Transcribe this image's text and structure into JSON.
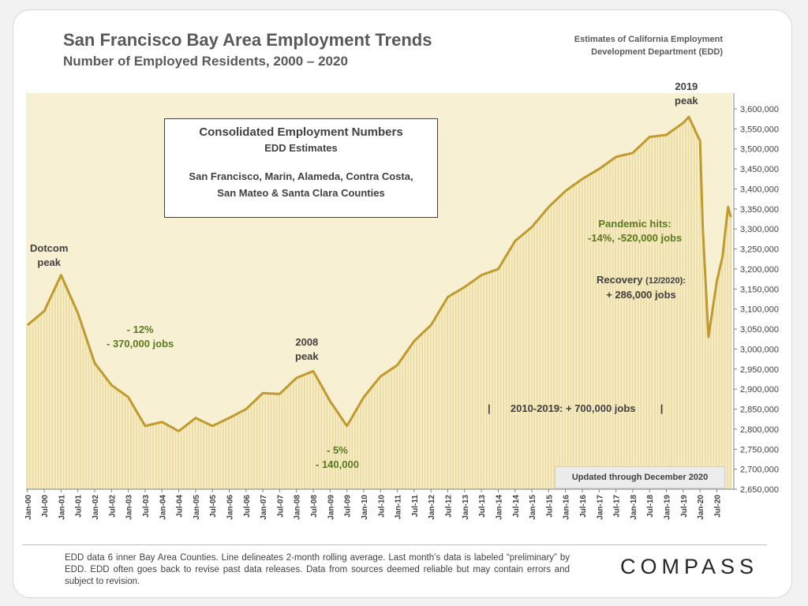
{
  "header": {
    "title": "San Francisco Bay Area Employment Trends",
    "subtitle": "Number of Employed Residents, 2000 – 2020",
    "source_line1": "Estimates of California Employment",
    "source_line2": "Development Department (EDD)"
  },
  "infobox": {
    "title": "Consolidated Employment Numbers",
    "subtitle": "EDD Estimates",
    "counties_line1": "San Francisco, Marin, Alameda, Contra Costa,",
    "counties_line2": "San Mateo & Santa Clara Counties"
  },
  "annotations": {
    "dotcom_1": "Dotcom",
    "dotcom_2": "peak",
    "drop1_1": "- 12%",
    "drop1_2": "- 370,000 jobs",
    "peak2008_1": "2008",
    "peak2008_2": "peak",
    "drop2_1": "- 5%",
    "drop2_2": "- 140,000",
    "growth": "2010-2019: + 700,000 jobs",
    "growth_left_mark": "|",
    "growth_right_mark": "|",
    "peak2019_1": "2019",
    "peak2019_2": "peak",
    "pandemic_1": "Pandemic hits:",
    "pandemic_2": "-14%, -520,000 jobs",
    "recovery_1": "Recovery",
    "recovery_small": "(12/2020):",
    "recovery_2": "+ 286,000 jobs",
    "updated": "Updated through December 2020"
  },
  "footer": {
    "note": "EDD data 6 inner Bay Area Counties. Line delineates 2-month rolling average. Last month’s data is labeled “preliminary” by EDD. EDD often goes back to revise past data releases. Data from sources deemed reliable but may contain errors and subject to revision.",
    "logo": "COMPASS"
  },
  "colors": {
    "line": "#c19a2e",
    "bar": "#ecdca0",
    "bar_fill": "#f8f0d2",
    "annotation_green": "#5a7a1e",
    "annotation_dark": "#404040"
  },
  "chart_data": {
    "type": "bar",
    "overlay": "line",
    "title": "San Francisco Bay Area Employment Trends",
    "subtitle": "Number of Employed Residents, 2000 – 2020",
    "ylim": [
      2650000,
      3600000
    ],
    "y_ticks": [
      2650000,
      2700000,
      2750000,
      2800000,
      2850000,
      2900000,
      2950000,
      3000000,
      3050000,
      3100000,
      3150000,
      3200000,
      3250000,
      3300000,
      3350000,
      3400000,
      3450000,
      3500000,
      3550000,
      3600000
    ],
    "y_tick_labels": [
      "2,650,000",
      "2,700,000",
      "2,750,000",
      "2,800,000",
      "2,850,000",
      "2,900,000",
      "2,950,000",
      "3,000,000",
      "3,050,000",
      "3,100,000",
      "3,150,000",
      "3,200,000",
      "3,250,000",
      "3,300,000",
      "3,350,000",
      "3,400,000",
      "3,450,000",
      "3,500,000",
      "3,550,000",
      "3,600,000"
    ],
    "x_tick_labels": [
      "Jan-00",
      "Jul-00",
      "Jan-01",
      "Jul-01",
      "Jan-02",
      "Jul-02",
      "Jan-03",
      "Jul-03",
      "Jan-04",
      "Jul-04",
      "Jan-05",
      "Jul-05",
      "Jan-06",
      "Jul-06",
      "Jan-07",
      "Jul-07",
      "Jan-08",
      "Jul-08",
      "Jan-09",
      "Jul-09",
      "Jan-10",
      "Jul-10",
      "Jan-11",
      "Jul-11",
      "Jan-12",
      "Jul-12",
      "Jan-13",
      "Jul-13",
      "Jan-14",
      "Jul-14",
      "Jan-15",
      "Jul-15",
      "Jan-16",
      "Jul-16",
      "Jan-17",
      "Jul-17",
      "Jan-18",
      "Jul-18",
      "Jan-19",
      "Jul-19",
      "Jan-20",
      "Jul-20"
    ],
    "monthly_anchors": [
      [
        "Jan-00",
        3060000
      ],
      [
        "Jul-00",
        3095000
      ],
      [
        "Jan-01",
        3185000
      ],
      [
        "Jul-01",
        3090000
      ],
      [
        "Jan-02",
        2965000
      ],
      [
        "Jul-02",
        2910000
      ],
      [
        "Jan-03",
        2880000
      ],
      [
        "Jul-03",
        2808000
      ],
      [
        "Jan-04",
        2818000
      ],
      [
        "Jul-04",
        2795000
      ],
      [
        "Jan-05",
        2828000
      ],
      [
        "Jul-05",
        2808000
      ],
      [
        "Jan-06",
        2828000
      ],
      [
        "Jul-06",
        2850000
      ],
      [
        "Jan-07",
        2890000
      ],
      [
        "Jul-07",
        2888000
      ],
      [
        "Jan-08",
        2928000
      ],
      [
        "Jul-08",
        2945000
      ],
      [
        "Jan-09",
        2870000
      ],
      [
        "Jul-09",
        2808000
      ],
      [
        "Jan-10",
        2880000
      ],
      [
        "Jul-10",
        2932000
      ],
      [
        "Jan-11",
        2960000
      ],
      [
        "Jul-11",
        3020000
      ],
      [
        "Jan-12",
        3060000
      ],
      [
        "Jul-12",
        3130000
      ],
      [
        "Jan-13",
        3155000
      ],
      [
        "Jul-13",
        3185000
      ],
      [
        "Jan-14",
        3200000
      ],
      [
        "Jul-14",
        3270000
      ],
      [
        "Jan-15",
        3305000
      ],
      [
        "Jul-15",
        3355000
      ],
      [
        "Jan-16",
        3395000
      ],
      [
        "Jul-16",
        3425000
      ],
      [
        "Jan-17",
        3450000
      ],
      [
        "Jul-17",
        3480000
      ],
      [
        "Jan-18",
        3490000
      ],
      [
        "Jul-18",
        3530000
      ],
      [
        "Jan-19",
        3535000
      ],
      [
        "Jul-19",
        3565000
      ],
      [
        "Sep-19",
        3580000
      ],
      [
        "Jan-20",
        3520000
      ],
      [
        "Feb-20",
        3300000
      ],
      [
        "Apr-20",
        3030000
      ],
      [
        "Jul-20",
        3170000
      ],
      [
        "Sep-20",
        3230000
      ],
      [
        "Nov-20",
        3355000
      ],
      [
        "Dec-20",
        3330000
      ]
    ]
  }
}
